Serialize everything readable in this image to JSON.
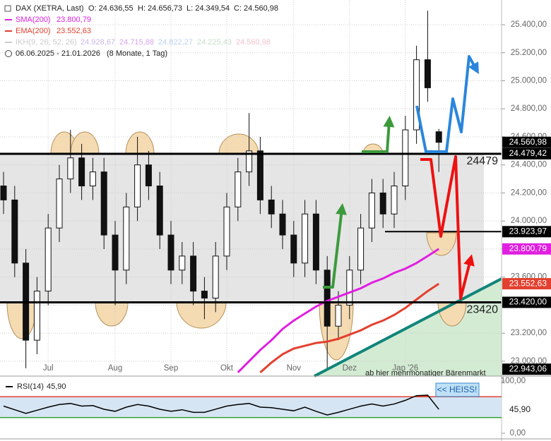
{
  "chart_data": [
    {
      "type": "candlestick",
      "title": "DAX (XETRA, Last)",
      "header": [
        "O: 24.636,55",
        "H: 24.656,73",
        "L: 24.349,54",
        "C: 24.560,98"
      ],
      "date_range": "06.06.2025 - 21.01.2026",
      "period": "(8 Monate, 1 Tag)",
      "indicator": {
        "name": "IKH(9, 26, 52, 26)",
        "values": [
          "24.928,67",
          "24.715,88",
          "24.822,27",
          "24.225,43",
          "24.560,98"
        ],
        "colors": [
          "#c9b8e6",
          "#d7a6ee",
          "#b9d2ee",
          "#c9dcc9",
          "#eec2cc"
        ],
        "color": "#cccccc"
      },
      "categories": [
        null,
        null,
        null,
        null,
        "Jul",
        null,
        null,
        null,
        null,
        null,
        "Aug",
        null,
        null,
        null,
        null,
        "Sep",
        null,
        null,
        null,
        null,
        "Okt",
        null,
        null,
        null,
        null,
        null,
        "Nov",
        null,
        null,
        null,
        null,
        "Dez",
        null,
        null,
        null,
        null,
        "Jan '26",
        null,
        null,
        null
      ],
      "open": [
        24250,
        24150,
        23700,
        23150,
        23500,
        23950,
        24300,
        24450,
        24250,
        24350,
        23900,
        23650,
        24100,
        24400,
        24250,
        23900,
        23650,
        23750,
        23500,
        23450,
        23750,
        24100,
        24350,
        24500,
        24150,
        24050,
        23900,
        23700,
        24050,
        23650,
        23250,
        23400,
        23650,
        23950,
        24200,
        24050,
        24250,
        24650,
        25150,
        24636.55
      ],
      "high": [
        24350,
        24250,
        23800,
        23600,
        24050,
        24400,
        24650,
        24550,
        24450,
        24450,
        24000,
        24200,
        24600,
        24500,
        24350,
        24000,
        23850,
        23850,
        23600,
        23850,
        24200,
        24450,
        24770,
        24600,
        24250,
        24150,
        24000,
        24150,
        24150,
        23750,
        23500,
        23750,
        24050,
        24300,
        24300,
        24350,
        24750,
        25250,
        25500,
        24656.73
      ],
      "low": [
        24050,
        23600,
        22950,
        23050,
        23400,
        23850,
        24200,
        24150,
        24150,
        23800,
        23400,
        23550,
        24000,
        24150,
        23800,
        23550,
        23550,
        23400,
        23300,
        23350,
        23650,
        24000,
        24250,
        24050,
        23950,
        23800,
        23600,
        23600,
        23550,
        22943.06,
        23150,
        23300,
        23550,
        23850,
        23950,
        23950,
        24150,
        24550,
        24850,
        24349.54
      ],
      "close": [
        24150,
        23700,
        23150,
        23500,
        23950,
        24300,
        24450,
        24250,
        24350,
        23900,
        23650,
        24100,
        24400,
        24250,
        23900,
        23650,
        23750,
        23500,
        23450,
        23750,
        24100,
        24350,
        24500,
        24150,
        24050,
        23900,
        23700,
        24050,
        23650,
        23250,
        23400,
        23650,
        23950,
        24200,
        24050,
        24250,
        24650,
        25150,
        24950,
        24560.98
      ],
      "series": [
        {
          "name": "EMA(200)",
          "legend_value": "23.552,63",
          "color": "#e3402f",
          "values": [
            null,
            null,
            null,
            null,
            null,
            null,
            null,
            null,
            null,
            null,
            null,
            null,
            null,
            null,
            null,
            null,
            null,
            null,
            null,
            null,
            null,
            null,
            null,
            22920,
            22990,
            23050,
            23090,
            23110,
            23130,
            23140,
            23160,
            23190,
            23220,
            23260,
            23290,
            23330,
            23380,
            23440,
            23500,
            23552.63
          ]
        },
        {
          "name": "SMA(200)",
          "legend_value": "23.800,79",
          "color": "#e01fe0",
          "values": [
            null,
            null,
            null,
            null,
            null,
            null,
            null,
            null,
            null,
            null,
            null,
            null,
            null,
            null,
            null,
            null,
            null,
            null,
            null,
            null,
            null,
            22920,
            23000,
            23080,
            23150,
            23230,
            23290,
            23340,
            23390,
            23430,
            23460,
            23490,
            23520,
            23560,
            23590,
            23630,
            23660,
            23700,
            23750,
            23800.79
          ]
        }
      ],
      "ylim": [
        22894,
        25576
      ],
      "yticks": [
        {
          "value": 23000,
          "label": "23.000,00"
        },
        {
          "value": 23200,
          "label": "23.200,00"
        },
        {
          "value": 23400,
          "label": "23.400,00"
        },
        {
          "value": 23600,
          "label": "23.600,00"
        },
        {
          "value": 23800,
          "label": "23.800,00"
        },
        {
          "value": 24000,
          "label": "24.000,00"
        },
        {
          "value": 24200,
          "label": "24.200,00"
        },
        {
          "value": 24400,
          "label": "24.400,00"
        },
        {
          "value": 24600,
          "label": "24.600,00"
        },
        {
          "value": 24800,
          "label": "24.800,00"
        },
        {
          "value": 25000,
          "label": "25.000,00"
        },
        {
          "value": 25200,
          "label": "25.200,00"
        },
        {
          "value": 25400,
          "label": "25.400,00"
        }
      ],
      "grid": true,
      "price_labels": [
        {
          "value": 24560.98,
          "label": "24.560,98",
          "color": "#000000"
        },
        {
          "value": 24479.42,
          "label": "24.479,42",
          "color": "#000000"
        },
        {
          "value": 23923.97,
          "label": "23.923,97",
          "color": "#000000"
        },
        {
          "value": 23800.79,
          "label": "23.800,79",
          "color": "#e01fe0"
        },
        {
          "value": 23552.63,
          "label": "23.552,63",
          "color": "#e3402f"
        },
        {
          "value": 23420,
          "label": "23.420,00",
          "color": "#000000"
        },
        {
          "value": 22943.06,
          "label": "22.943,06",
          "color": "#000000"
        }
      ],
      "levels": [
        24479,
        23420
      ],
      "note": "ab hier mehrmonatiger Bärenmarkt"
    },
    {
      "type": "line",
      "title": "RSI(14)",
      "last_value_label": "45,90",
      "color": "#000000",
      "values": [
        52,
        45,
        38,
        44,
        50,
        55,
        57,
        52,
        53,
        46,
        42,
        50,
        55,
        52,
        46,
        42,
        45,
        40,
        40,
        46,
        52,
        55,
        57,
        50,
        49,
        46,
        43,
        50,
        42,
        35,
        40,
        46,
        52,
        56,
        52,
        56,
        63,
        72,
        73,
        45.9
      ],
      "ylim": [
        0,
        100
      ],
      "yticks": [
        {
          "value": 100,
          "label": "100,00"
        },
        {
          "value": 0,
          "label": "0,00"
        }
      ],
      "levels": [
        {
          "value": 70,
          "color": "#e3402f"
        },
        {
          "value": 30,
          "color": "#33a033"
        }
      ],
      "annotation": "<< HEISS!"
    }
  ]
}
